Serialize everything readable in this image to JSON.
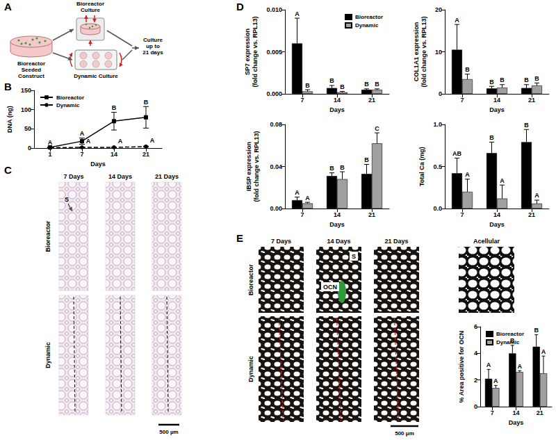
{
  "panel_labels": [
    "A",
    "B",
    "C",
    "D",
    "E"
  ],
  "schematic": {
    "construct": "Bioreactor\nSeeded\nConstruct",
    "bioreactor": "Bioreactor\nCulture",
    "dynamic": "Dynamic Culture",
    "result": "Culture\nup to\n21 days"
  },
  "histology_c": {
    "columns": [
      "7 Days",
      "14 Days",
      "21 Days"
    ],
    "rows": [
      "Bioreactor",
      "Dynamic"
    ],
    "scaffold_label": "S",
    "scale_bar": "500 µm"
  },
  "histology_e": {
    "columns": [
      "7 Days",
      "14 Days",
      "21 Days",
      "Acellular"
    ],
    "rows": [
      "Bioreactor",
      "Dynamic"
    ],
    "scaffold_label": "S",
    "stain_label": "OCN",
    "scale_bar": "500 μm"
  },
  "chart_data": [
    {
      "type": "line",
      "x_label": "Days",
      "y_label": "DNA (ng)",
      "categories": [
        "1",
        "7",
        "14",
        "21"
      ],
      "ylim": [
        0,
        150
      ],
      "yticks": [
        0,
        50,
        100,
        150
      ],
      "grid": false,
      "legend": "upper left",
      "series": [
        {
          "name": "Bioreactor",
          "color": "#000000",
          "marker": "square",
          "line_style": "solid",
          "values": [
            2,
            18,
            70,
            80
          ],
          "errors": [
            1,
            8,
            23,
            28
          ],
          "letters": [
            "A",
            "A",
            "B",
            "B"
          ]
        },
        {
          "name": "Dynamic",
          "color": "#000000",
          "marker": "circle",
          "line_style": "dashed",
          "values": [
            1,
            2,
            2,
            4
          ],
          "errors": [
            0.5,
            0.5,
            0.5,
            1
          ],
          "letters": [
            null,
            "A",
            "A",
            "A"
          ]
        }
      ]
    },
    {
      "type": "bar",
      "x_label": "Days",
      "y_label": "SP7 expression\n(fold change vs. RPL13)",
      "categories": [
        "7",
        "14",
        "21"
      ],
      "ylim": [
        0,
        0.01
      ],
      "yticks": [
        {
          "value": 0,
          "label": "0.000"
        },
        0.005,
        {
          "value": 0.01,
          "label": "0.010"
        }
      ],
      "grid": false,
      "legend": "upper right",
      "series": [
        {
          "name": "Bioreactor",
          "color": "#000000",
          "values": [
            0.006,
            0.0007,
            0.0005
          ],
          "errors": [
            0.003,
            0.0003,
            0.0001
          ],
          "letters": [
            "A",
            "B",
            "B"
          ]
        },
        {
          "name": "Dynamic",
          "color": "#a0a0a0",
          "values": [
            0.0003,
            0.0002,
            0.0005
          ],
          "errors": [
            0.0002,
            0.0001,
            0.0001
          ],
          "letters": [
            "B",
            "B",
            "B"
          ]
        }
      ]
    },
    {
      "type": "bar",
      "x_label": "Days",
      "y_label": "COL1A1 expression\n(fold change vs. RPL13)",
      "categories": [
        "7",
        "14",
        "21"
      ],
      "ylim": [
        0,
        20
      ],
      "yticks": [
        0,
        10,
        20
      ],
      "grid": false,
      "series": [
        {
          "name": "Bioreactor",
          "color": "#000000",
          "values": [
            10.5,
            1.3,
            1.4
          ],
          "errors": [
            6,
            0.5,
            0.8
          ],
          "letters": [
            "A",
            "B",
            "B"
          ]
        },
        {
          "name": "Dynamic",
          "color": "#a0a0a0",
          "values": [
            3.5,
            1.5,
            2.0
          ],
          "errors": [
            1.2,
            0.7,
            0.6
          ],
          "letters": [
            "B",
            "B",
            "B"
          ]
        }
      ]
    },
    {
      "type": "bar",
      "x_label": "Days",
      "y_label": "IBSP expression\n(fold change vs. RPL13)",
      "categories": [
        "7",
        "14",
        "21"
      ],
      "ylim": [
        0,
        0.08
      ],
      "yticks": [
        {
          "value": 0,
          "label": "0.00"
        },
        0.04,
        0.08
      ],
      "grid": false,
      "series": [
        {
          "name": "Bioreactor",
          "color": "#000000",
          "values": [
            0.008,
            0.031,
            0.033
          ],
          "errors": [
            0.003,
            0.003,
            0.009
          ],
          "letters": [
            "A",
            "B",
            "B"
          ]
        },
        {
          "name": "Dynamic",
          "color": "#a0a0a0",
          "values": [
            0.005,
            0.028,
            0.062
          ],
          "errors": [
            0.001,
            0.007,
            0.01
          ],
          "letters": [
            "A",
            "B",
            "C"
          ]
        }
      ]
    },
    {
      "type": "bar",
      "x_label": "Days",
      "y_label": "Total Ca (mg)",
      "categories": [
        "7",
        "14",
        "21"
      ],
      "ylim": [
        0,
        1
      ],
      "yticks": [
        {
          "value": 0,
          "label": "0.0"
        },
        0.5,
        {
          "value": 1,
          "label": "1.0"
        }
      ],
      "grid": false,
      "series": [
        {
          "name": "Bioreactor",
          "color": "#000000",
          "values": [
            0.42,
            0.66,
            0.79
          ],
          "errors": [
            0.18,
            0.13,
            0.15
          ],
          "letters": [
            "AB",
            "B",
            "B"
          ]
        },
        {
          "name": "Dynamic",
          "color": "#a0a0a0",
          "values": [
            0.2,
            0.12,
            0.06
          ],
          "errors": [
            0.15,
            0.16,
            0.04
          ],
          "letters": [
            "A",
            "A",
            "A"
          ]
        }
      ]
    },
    {
      "type": "bar",
      "x_label": "Days",
      "y_label": "% Area positive for OCN",
      "categories": [
        "7",
        "14",
        "21"
      ],
      "ylim": [
        0,
        6
      ],
      "yticks": [
        0,
        2,
        4,
        6
      ],
      "grid": false,
      "legend": "upper left",
      "series": [
        {
          "name": "Bioreactor",
          "color": "#000000",
          "values": [
            2.1,
            4.0,
            4.5
          ],
          "errors": [
            0.7,
            0.6,
            0.9
          ],
          "letters": [
            "A",
            "B",
            "B"
          ]
        },
        {
          "name": "Dynamic",
          "color": "#a0a0a0",
          "values": [
            1.4,
            2.6,
            2.5
          ],
          "errors": [
            0.2,
            0.1,
            1.3
          ],
          "letters": [
            "A",
            "A",
            "A"
          ]
        }
      ]
    }
  ]
}
